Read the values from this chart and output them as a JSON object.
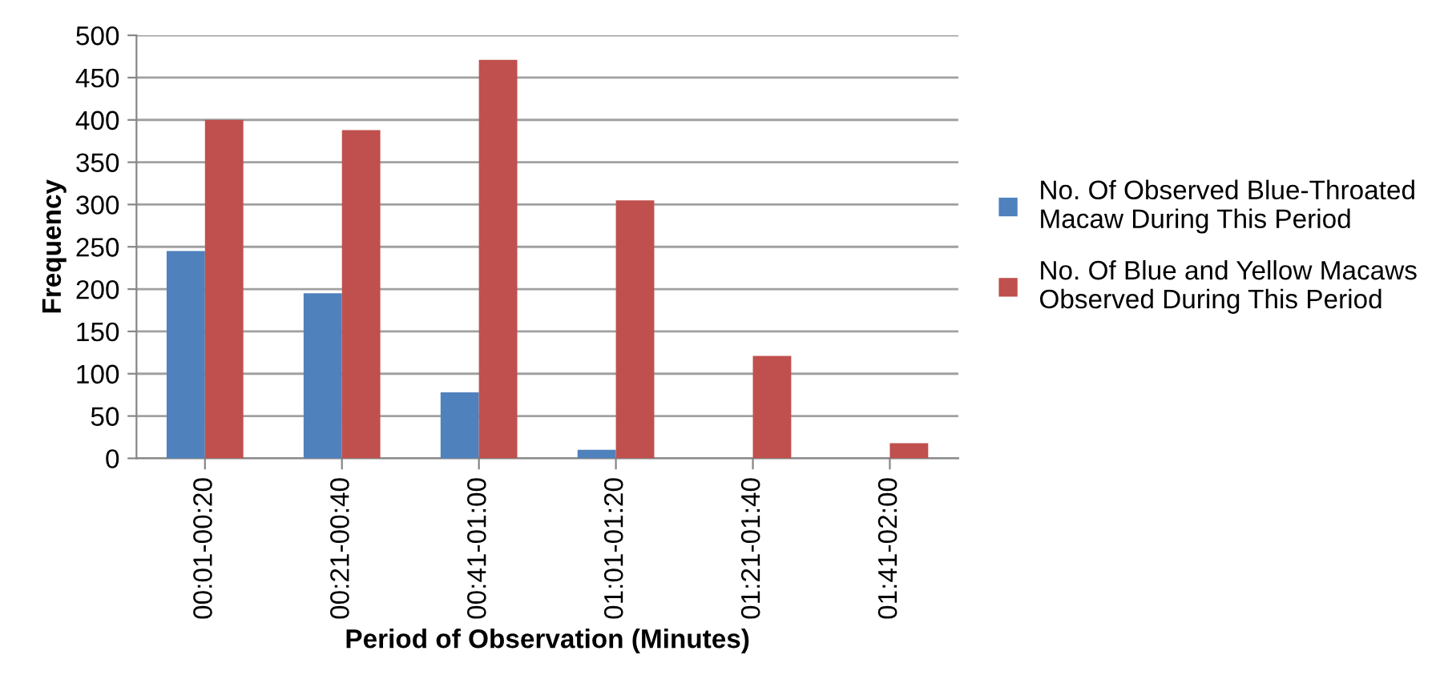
{
  "chart_data": {
    "type": "bar",
    "xlabel": "Period of Observation (Minutes)",
    "ylabel": "Frequency",
    "categories": [
      "00:01-00:20",
      "00:21-00:40",
      "00:41-01:00",
      "01:01-01:20",
      "01:21-01:40",
      "01:41-02:00"
    ],
    "series": [
      {
        "name": "No. Of Observed Blue-Throated\nMacaw During This Period",
        "color": "#4f81bd",
        "values": [
          245,
          195,
          78,
          10,
          0,
          0
        ]
      },
      {
        "name": "No. Of Blue and Yellow Macaws\nObserved During This Period",
        "color": "#c0504d",
        "values": [
          400,
          388,
          471,
          305,
          121,
          18
        ]
      }
    ],
    "ylim": [
      0,
      500
    ],
    "yticks": [
      0,
      50,
      100,
      150,
      200,
      250,
      300,
      350,
      400,
      450,
      500
    ],
    "grid": "y",
    "legend": "right"
  }
}
